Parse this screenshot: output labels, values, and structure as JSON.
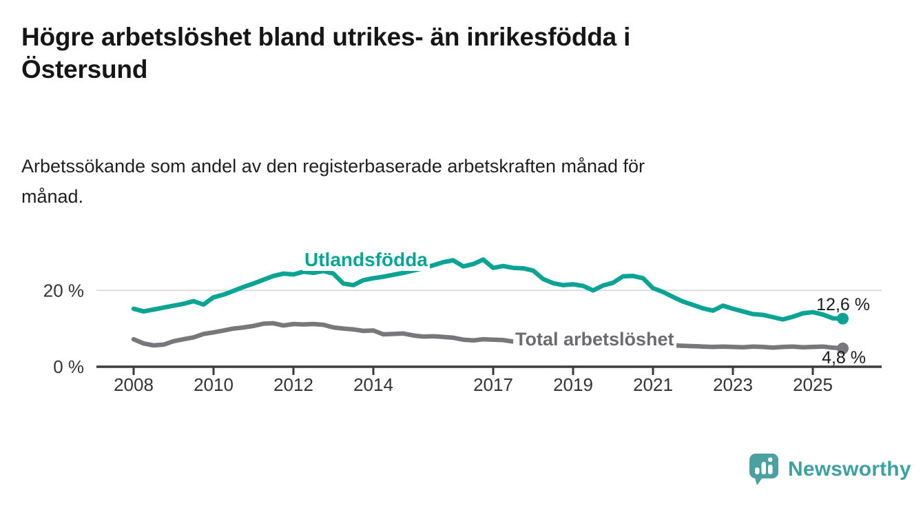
{
  "header": {
    "title_lines": [
      "Högre arbetslöshet bland utrikes- än inrikesfödda i",
      "Östersund"
    ],
    "subtitle_lines": [
      "Arbetssökande som andel av den registerbaserade arbetskraften månad för",
      "månad."
    ]
  },
  "branding": {
    "logo_text": "Newsworthy",
    "logo_icon": "speech-bubble-bar-chart-icon",
    "brand_color": "#3da1a1"
  },
  "colors": {
    "background": "#ffffff",
    "title_text": "#161616",
    "axis": "#3b3b3b",
    "grid": "#dcdcdc",
    "tick_text": "#333333",
    "value_label_text": "#1a1a1a",
    "utlandsfodda": "#0ba394",
    "total": "#78787c",
    "total_label": "#6c6c70"
  },
  "chart_data": {
    "type": "line",
    "title": "Högre arbetslöshet bland utrikes- än inrikesfödda i Östersund",
    "subtitle": "Arbetssökande som andel av den registerbaserade arbetskraften månad för månad.",
    "xlabel": "",
    "ylabel": "",
    "unit": "%",
    "xlim": [
      2007.9,
      2026.3
    ],
    "ylim": [
      0,
      33
    ],
    "grid": "single-horizontal-gridline-at-20",
    "legend": "inline-series-labels",
    "x_ticks": [
      2008,
      2010,
      2012,
      2014,
      2017,
      2019,
      2021,
      2023,
      2025
    ],
    "y_ticks": [
      {
        "value": 0,
        "label": "0 %"
      },
      {
        "value": 20,
        "label": "20 %"
      }
    ],
    "x": [
      2008.0,
      2008.25,
      2008.5,
      2008.75,
      2009.0,
      2009.25,
      2009.5,
      2009.75,
      2010.0,
      2010.25,
      2010.5,
      2010.75,
      2011.0,
      2011.25,
      2011.5,
      2011.75,
      2012.0,
      2012.25,
      2012.5,
      2012.75,
      2013.0,
      2013.25,
      2013.5,
      2013.75,
      2014.0,
      2014.25,
      2014.5,
      2014.75,
      2015.0,
      2015.25,
      2015.5,
      2015.75,
      2016.0,
      2016.25,
      2016.5,
      2016.75,
      2017.0,
      2017.25,
      2017.5,
      2017.75,
      2018.0,
      2018.25,
      2018.5,
      2018.75,
      2019.0,
      2019.25,
      2019.5,
      2019.75,
      2020.0,
      2020.25,
      2020.5,
      2020.75,
      2021.0,
      2021.25,
      2021.5,
      2021.75,
      2022.0,
      2022.25,
      2022.5,
      2022.75,
      2023.0,
      2023.25,
      2023.5,
      2023.75,
      2024.0,
      2024.25,
      2024.5,
      2024.75,
      2025.0,
      2025.25,
      2025.5,
      2025.75
    ],
    "series": [
      {
        "name": "Utlandsfödda",
        "color": "#0ba394",
        "end_label": "12,6 %",
        "end_value": 12.6,
        "values": [
          15.2,
          14.5,
          15.0,
          15.5,
          16.0,
          16.5,
          17.2,
          16.3,
          18.2,
          18.9,
          19.9,
          20.9,
          21.8,
          22.8,
          23.8,
          24.4,
          24.2,
          24.9,
          24.6,
          25.1,
          24.4,
          21.8,
          21.4,
          22.7,
          23.2,
          23.6,
          24.1,
          24.6,
          25.2,
          25.8,
          26.6,
          27.4,
          27.9,
          26.3,
          26.9,
          28.1,
          25.9,
          26.4,
          25.9,
          25.8,
          25.2,
          23.0,
          21.9,
          21.4,
          21.6,
          21.2,
          20.0,
          21.3,
          22.0,
          23.7,
          23.8,
          23.2,
          20.6,
          19.6,
          18.3,
          17.1,
          16.2,
          15.3,
          14.7,
          16.0,
          15.2,
          14.5,
          13.8,
          13.6,
          13.0,
          12.4,
          13.1,
          14.0,
          14.3,
          13.7,
          12.7,
          12.6
        ]
      },
      {
        "name": "Total arbetslöshet",
        "color": "#78787c",
        "end_label": "4,8 %",
        "end_value": 4.8,
        "values": [
          7.2,
          6.1,
          5.6,
          5.8,
          6.7,
          7.2,
          7.7,
          8.6,
          9.0,
          9.5,
          10.0,
          10.3,
          10.7,
          11.3,
          11.4,
          10.8,
          11.2,
          11.1,
          11.2,
          11.0,
          10.3,
          10.0,
          9.8,
          9.4,
          9.5,
          8.5,
          8.6,
          8.7,
          8.2,
          7.9,
          8.0,
          7.8,
          7.6,
          7.1,
          6.9,
          7.2,
          7.1,
          7.0,
          6.6,
          6.5,
          6.4,
          6.3,
          6.2,
          6.1,
          6.0,
          5.9,
          5.8,
          5.9,
          6.2,
          6.4,
          6.3,
          6.1,
          5.9,
          5.7,
          5.6,
          5.5,
          5.4,
          5.3,
          5.2,
          5.3,
          5.2,
          5.1,
          5.3,
          5.2,
          5.0,
          5.2,
          5.3,
          5.1,
          5.2,
          5.3,
          5.0,
          4.8
        ]
      }
    ]
  }
}
